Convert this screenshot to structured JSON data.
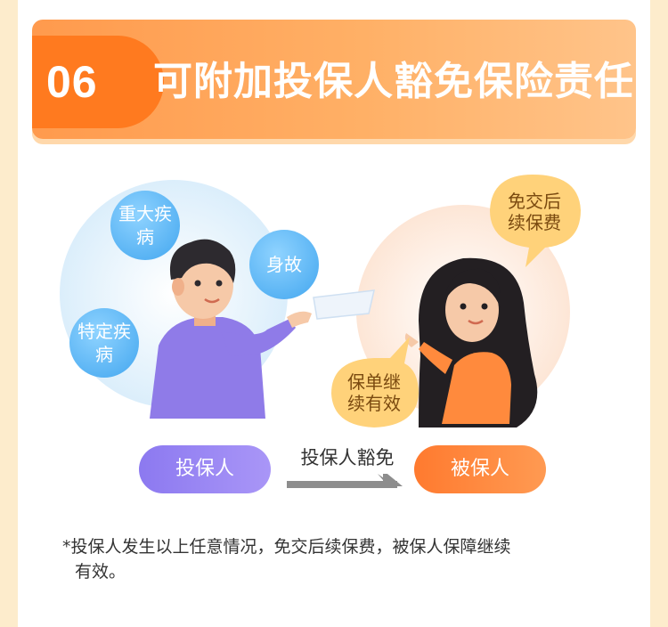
{
  "section": {
    "number": "06",
    "title": "可附加投保人豁免保险责任"
  },
  "bubbles": {
    "major_illness": "重大疾病",
    "death": "身故",
    "specific_illness": "特定疾病",
    "waive_premium": "免交后续保费",
    "policy_continue": "保单继续有效"
  },
  "flow": {
    "policyholder": "投保人",
    "waiver": "投保人豁免",
    "insured": "被保人"
  },
  "footnote": {
    "line1": "*投保人发生以上任意情况，免交后续保费，被保人保障继续",
    "line2": "有效。"
  },
  "colors": {
    "header_orange": "#ff7a1f",
    "blue_bubble": "#42a6ef",
    "purple_pill": "#8c79f0",
    "orange_pill": "#ff7a2f",
    "yellow_bubble": "#ffd27a"
  }
}
